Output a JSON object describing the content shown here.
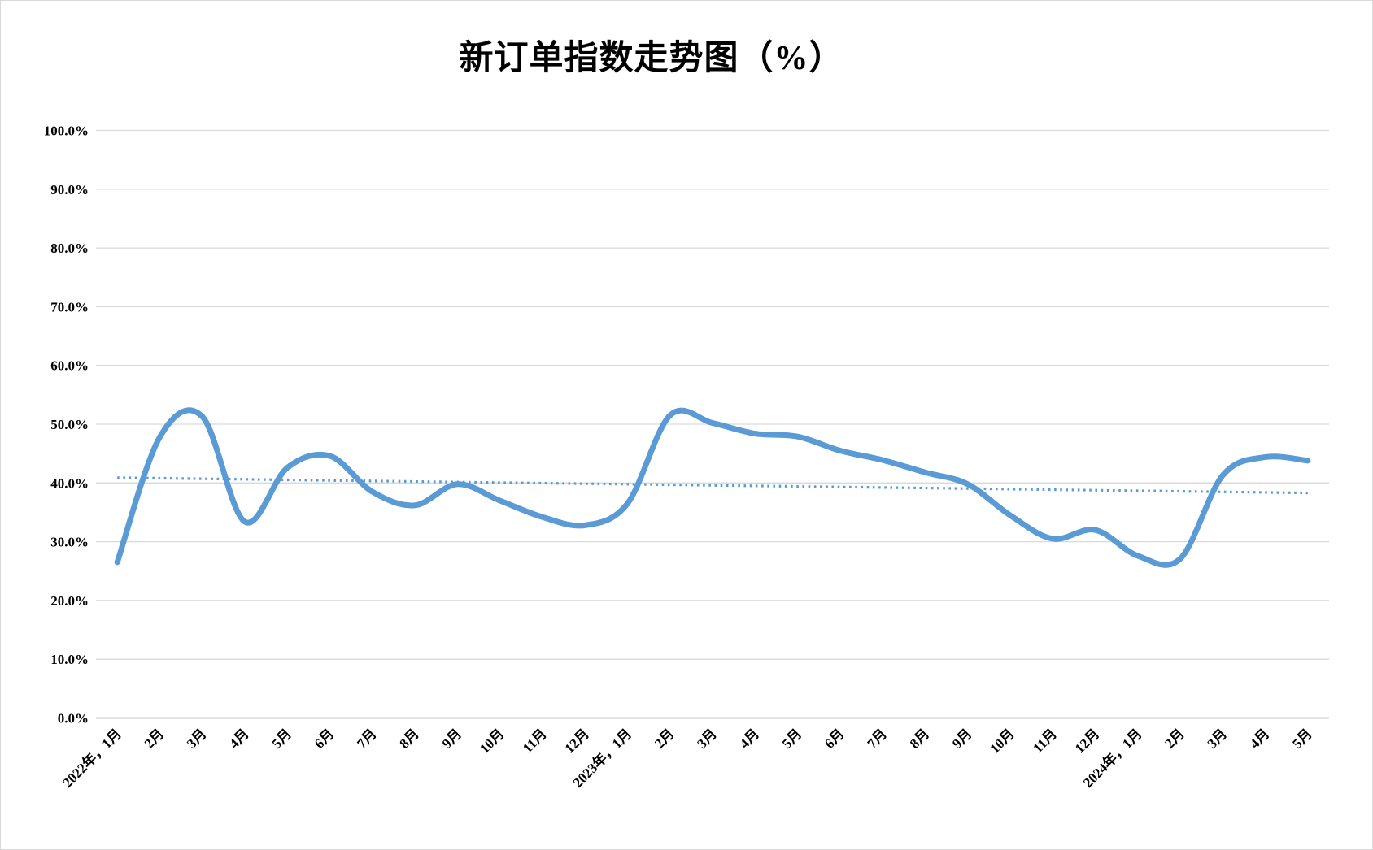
{
  "title": "新订单指数走势图（%）",
  "chart_data": {
    "type": "line",
    "title": "新订单指数走势图（%）",
    "categories": [
      "2022年，1月",
      "2月",
      "3月",
      "4月",
      "5月",
      "6月",
      "7月",
      "8月",
      "9月",
      "10月",
      "11月",
      "12月",
      "2023年，1月",
      "2月",
      "3月",
      "4月",
      "5月",
      "6月",
      "7月",
      "8月",
      "9月",
      "10月",
      "11月",
      "12月",
      "2024年，1月",
      "2月",
      "3月",
      "4月",
      "5月"
    ],
    "values": [
      26.5,
      47.8,
      51.3,
      33.4,
      42.6,
      44.6,
      38.5,
      36.2,
      39.8,
      37.0,
      34.2,
      32.8,
      36.5,
      51.5,
      50.2,
      48.4,
      47.9,
      45.5,
      43.9,
      41.8,
      39.8,
      34.5,
      30.5,
      32.0,
      27.6,
      27.1,
      41.3,
      44.4,
      43.8
    ],
    "trendline": {
      "style": "dotted",
      "start_value": 40.9,
      "end_value": 38.3
    },
    "y_tick_labels": [
      "100.0%",
      "90.0%",
      "80.0%",
      "70.0%",
      "60.0%",
      "50.0%",
      "40.0%",
      "30.0%",
      "20.0%",
      "10.0%",
      "0.0%"
    ],
    "ylim": [
      0,
      100
    ],
    "y_step": 10,
    "grid": "horizontal",
    "legend": "none",
    "x_label_rotation_deg": 45,
    "colors": {
      "series": "#5B9BD5",
      "trendline": "#5B9BD5",
      "gridline": "#D9D9D9",
      "axis_line": "#C8C8C8",
      "text": "#000000",
      "background": "#FFFFFF"
    }
  }
}
